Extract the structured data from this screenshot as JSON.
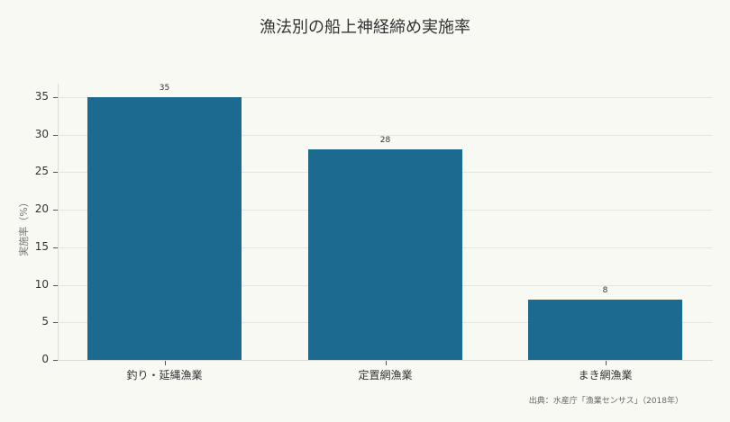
{
  "title": "漁法別の船上神経締め実施率",
  "ylabel": "実施率（%）",
  "source": "出典：水産庁「漁業センサス」（2018年）",
  "colors": {
    "bar": "#1d6a91",
    "background": "#f9f9f4",
    "grid": "#e6e6e0"
  },
  "yticks": [
    "0",
    "5",
    "10",
    "15",
    "20",
    "25",
    "30",
    "35"
  ],
  "chart_data": {
    "type": "bar",
    "title": "漁法別の船上神経締め実施率",
    "xlabel": "",
    "ylabel": "実施率（%）",
    "categories": [
      "釣り・延縄漁業",
      "定置網漁業",
      "まき網漁業"
    ],
    "values": [
      35,
      28,
      8
    ],
    "data_labels": [
      "35",
      "28",
      "8"
    ],
    "ylim": [
      0,
      36.8
    ],
    "yticks": [
      0,
      5,
      10,
      15,
      20,
      25,
      30,
      35
    ],
    "grid": "horizontal",
    "legend": "none",
    "annotation": "出典：水産庁「漁業センサス」（2018年）"
  }
}
